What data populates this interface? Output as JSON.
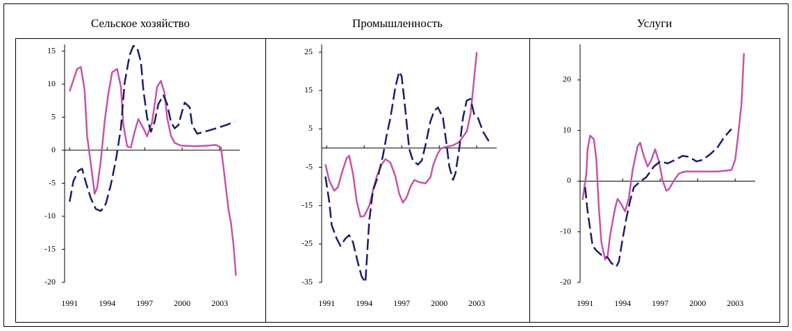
{
  "chart_data": [
    {
      "type": "line",
      "title": "Сельское хозяйство",
      "xlim": [
        1990.6,
        2004.6
      ],
      "xticks": [
        1991,
        1994,
        1997,
        2000,
        2003
      ],
      "ylim": [
        -20,
        16
      ],
      "yticks": [
        -20,
        -15,
        -10,
        -5,
        0,
        5,
        10,
        15
      ],
      "series": [
        {
          "color": "#c454a8",
          "dashed": false,
          "x": [
            1991.0,
            1991.6,
            1991.9,
            1992.2,
            1992.4,
            1992.8,
            1993.0,
            1993.2,
            1993.5,
            1993.8,
            1994.1,
            1994.4,
            1994.8,
            1995.1,
            1995.3,
            1995.6,
            1995.9,
            1996.2,
            1996.5,
            1996.9,
            1997.2,
            1997.6,
            1998.0,
            1998.3,
            1998.6,
            1998.8,
            1999.1,
            1999.4,
            1999.9,
            2001.0,
            2002.1,
            2002.7,
            2003.1,
            2003.3,
            2003.7,
            2003.9,
            2004.1,
            2004.3
          ],
          "values": [
            8.9,
            12.3,
            12.6,
            9.1,
            2.2,
            -3.6,
            -6.6,
            -5.7,
            -1.5,
            4.3,
            8.6,
            11.8,
            12.3,
            9.6,
            3.8,
            0.6,
            0.4,
            2.8,
            4.7,
            3.3,
            2.1,
            4.3,
            9.6,
            10.5,
            8.6,
            4.9,
            2.2,
            1.1,
            0.7,
            0.6,
            0.7,
            0.8,
            0.4,
            -2.5,
            -8.9,
            -11,
            -14.2,
            -19
          ]
        },
        {
          "color": "#1c1c6a",
          "dashed": true,
          "x": [
            1991.0,
            1991.3,
            1991.7,
            1992.0,
            1992.3,
            1992.7,
            1993.1,
            1993.5,
            1993.9,
            1994.3,
            1994.7,
            1995.1,
            1995.4,
            1995.8,
            1996.1,
            1996.4,
            1996.7,
            1996.9,
            1997.2,
            1997.5,
            1997.8,
            1998.1,
            1998.5,
            1998.8,
            1999.1,
            1999.4,
            1999.7,
            2000.0,
            2000.2,
            2000.6,
            2000.8,
            2001.2,
            2001.8,
            2002.7,
            2003.5,
            2004.2
          ],
          "values": [
            -7.8,
            -4.7,
            -3.1,
            -2.8,
            -4.9,
            -7.3,
            -8.9,
            -9.2,
            -8.1,
            -5.2,
            -1.5,
            3.3,
            10.2,
            14.4,
            15.8,
            15.5,
            13.4,
            9.1,
            4.9,
            2.8,
            4.3,
            7.0,
            8.3,
            7.0,
            4.3,
            3.3,
            3.8,
            5.9,
            7.2,
            6.5,
            3.8,
            2.5,
            2.8,
            3.3,
            3.8,
            4.3
          ]
        }
      ]
    },
    {
      "type": "line",
      "title": "Промышленность",
      "xlim": [
        1990.6,
        2004.6
      ],
      "xticks": [
        1991,
        1994,
        1997,
        2000,
        2003
      ],
      "ylim": [
        -35,
        27
      ],
      "yticks": [
        -35,
        -25,
        -15,
        -5,
        5,
        15,
        25
      ],
      "series": [
        {
          "color": "#c454a8",
          "dashed": false,
          "x": [
            1990.9,
            1991.2,
            1991.6,
            1991.9,
            1992.2,
            1992.6,
            1992.8,
            1993.1,
            1993.4,
            1993.7,
            1994.0,
            1994.4,
            1994.7,
            1995.0,
            1995.4,
            1995.7,
            1996.1,
            1996.5,
            1996.8,
            1997.1,
            1997.4,
            1997.7,
            1998.0,
            1998.4,
            1998.9,
            1999.3,
            1999.5,
            1999.8,
            2000.1,
            2000.5,
            2001.1,
            2001.6,
            2002.2,
            2002.5,
            2002.7,
            2003.0
          ],
          "values": [
            -4.2,
            -8.4,
            -11.1,
            -10.2,
            -6.6,
            -2.6,
            -2.0,
            -6.6,
            -13.8,
            -17.9,
            -17.7,
            -15.1,
            -11.1,
            -7.4,
            -4.3,
            -2.9,
            -3.8,
            -7.4,
            -11.9,
            -14.2,
            -12.8,
            -10.1,
            -8.3,
            -8.9,
            -9.2,
            -7.6,
            -4.7,
            -2.0,
            -0.2,
            0.3,
            0.7,
            1.6,
            4.3,
            8.8,
            15.1,
            25
          ]
        },
        {
          "color": "#1c1c6a",
          "dashed": true,
          "x": [
            1990.9,
            1991.2,
            1991.4,
            1991.8,
            1992.1,
            1992.5,
            1992.8,
            1993.1,
            1993.5,
            1993.8,
            1994.1,
            1994.4,
            1994.7,
            1995.1,
            1995.5,
            1995.8,
            1996.1,
            1996.5,
            1996.8,
            1997.0,
            1997.3,
            1997.6,
            1997.9,
            1998.3,
            1998.6,
            1998.9,
            1999.3,
            1999.6,
            1999.9,
            2000.3,
            2000.6,
            2000.8,
            2001.1,
            2001.3,
            2001.6,
            2001.9,
            2002.2,
            2002.5,
            2002.8,
            2003.1,
            2003.5,
            2004.0
          ],
          "values": [
            -7.4,
            -13.8,
            -20.1,
            -23.6,
            -25.5,
            -23.6,
            -22.7,
            -24.5,
            -29.9,
            -33.5,
            -35,
            -19.1,
            -11.1,
            -7.4,
            -2.0,
            3.4,
            7.9,
            16.0,
            19.9,
            18.7,
            9.7,
            -0.2,
            -3.3,
            -4.3,
            -3.3,
            0.7,
            7.0,
            9.7,
            10.6,
            7.9,
            0.7,
            -4.7,
            -8.3,
            -6.6,
            -0.2,
            7.9,
            12.4,
            12.8,
            8.8,
            7.9,
            4.3,
            1.6
          ]
        }
      ]
    },
    {
      "type": "line",
      "title": "Услуги",
      "xlim": [
        1990.6,
        2004.6
      ],
      "xticks": [
        1991,
        1994,
        1997,
        2000,
        2003
      ],
      "ylim": [
        -20,
        27
      ],
      "yticks": [
        -20,
        -10,
        0,
        10,
        20
      ],
      "series": [
        {
          "color": "#c454a8",
          "dashed": false,
          "x": [
            1990.8,
            1991.1,
            1991.2,
            1991.4,
            1991.7,
            1991.9,
            1992.1,
            1992.3,
            1992.6,
            1992.8,
            1993.0,
            1993.4,
            1993.6,
            1993.9,
            1994.2,
            1994.5,
            1994.8,
            1995.2,
            1995.4,
            1995.7,
            1996.0,
            1996.3,
            1996.6,
            1996.9,
            1997.2,
            1997.5,
            1997.7,
            1998.1,
            1998.5,
            1999.0,
            1999.9,
            2001.6,
            2002.7,
            2003.0,
            2003.2,
            2003.5,
            2003.7
          ],
          "values": [
            -3.7,
            1.5,
            6.3,
            9.0,
            8.3,
            4.2,
            -5.3,
            -12.1,
            -15.5,
            -14.8,
            -10.7,
            -5.3,
            -3.5,
            -4.6,
            -6.0,
            -3.3,
            2.2,
            6.9,
            7.6,
            4.9,
            2.9,
            4.2,
            6.3,
            3.9,
            0.1,
            -1.9,
            -1.6,
            0.1,
            1.5,
            1.9,
            1.9,
            1.9,
            2.2,
            4.2,
            8.3,
            15.1,
            25.3
          ]
        },
        {
          "color": "#1c1c6a",
          "dashed": true,
          "x": [
            1991.0,
            1991.2,
            1991.6,
            1991.9,
            1992.3,
            1992.8,
            1993.1,
            1993.5,
            1993.7,
            1994.0,
            1994.3,
            1994.6,
            1994.9,
            1995.4,
            1995.9,
            1996.5,
            1997.0,
            1997.6,
            1998.2,
            1998.8,
            1999.3,
            1999.9,
            2000.4,
            2001.0,
            2001.6,
            2002.1,
            2002.7
          ],
          "values": [
            -1.2,
            -6.0,
            -12.8,
            -13.7,
            -14.6,
            -15.1,
            -16.2,
            -16.9,
            -15.9,
            -11.4,
            -7.3,
            -3.9,
            -1.2,
            -0.1,
            0.8,
            2.9,
            3.9,
            3.5,
            4.2,
            5.0,
            4.8,
            3.9,
            4.2,
            5.3,
            6.7,
            8.6,
            10.3
          ]
        }
      ]
    }
  ]
}
